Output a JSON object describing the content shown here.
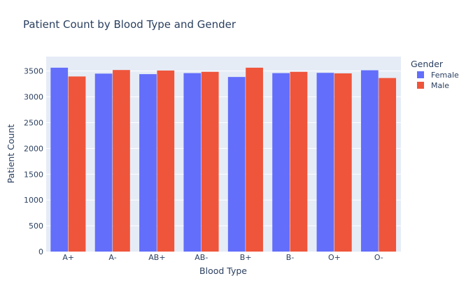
{
  "chart_data": {
    "type": "bar",
    "title": "Patient Count by Blood Type and Gender",
    "xlabel": "Blood Type",
    "ylabel": "Patient Count",
    "categories": [
      "A+",
      "A-",
      "AB+",
      "AB-",
      "B+",
      "B-",
      "O+",
      "O-"
    ],
    "series": [
      {
        "name": "Female",
        "color": "#636efa",
        "values": [
          3565,
          3450,
          3440,
          3460,
          3385,
          3460,
          3465,
          3515
        ]
      },
      {
        "name": "Male",
        "color": "#ef553b",
        "values": [
          3395,
          3520,
          3510,
          3485,
          3565,
          3485,
          3455,
          3365
        ]
      }
    ],
    "ylim": [
      0,
      3780
    ],
    "yticks": [
      0,
      500,
      1000,
      1500,
      2000,
      2500,
      3000,
      3500
    ],
    "legend": {
      "title": "Gender",
      "placement": "top-right"
    },
    "grid": true,
    "plot_background": "#e5ecf6"
  }
}
